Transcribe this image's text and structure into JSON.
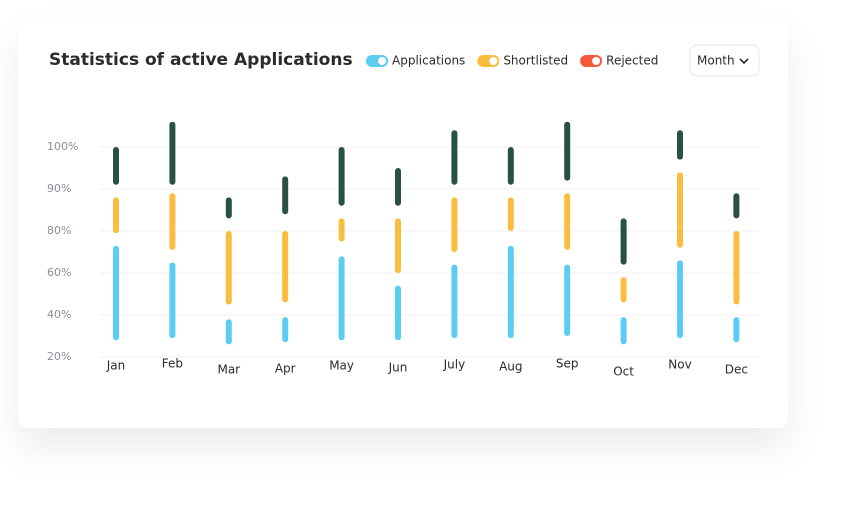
{
  "header": {
    "title": "Statistics of active Applications",
    "dropdown": "Month"
  },
  "chart_data": {
    "type": "range-bar",
    "categories": [
      "Jan",
      "Feb",
      "Mar",
      "Apr",
      "May",
      "Jun",
      "July",
      "Aug",
      "Sep",
      "Oct",
      "Nov",
      "Dec"
    ],
    "series": [
      {
        "name": "Applications",
        "color": "#5bcdf0",
        "legend_color": "#5bcdf0",
        "low": [
          28,
          29,
          26,
          27,
          28,
          28,
          29,
          29,
          30,
          26,
          29,
          27
        ],
        "high": [
          73,
          65,
          38,
          39,
          68,
          54,
          64,
          73,
          64,
          39,
          66,
          39
        ]
      },
      {
        "name": "Shortlisted",
        "color": "#fbbd3f",
        "legend_color": "#fbbd3f",
        "low": [
          79,
          71,
          45,
          46,
          75,
          60,
          70,
          80,
          71,
          46,
          72,
          45
        ],
        "high": [
          88,
          89,
          80,
          80,
          83,
          83,
          88,
          88,
          89,
          58,
          94,
          80
        ]
      },
      {
        "name": "Rejected",
        "color": "#285046",
        "legend_color": "#f45a3a",
        "low": [
          91,
          91,
          83,
          84,
          86,
          86,
          91,
          91,
          92,
          64,
          97,
          83
        ],
        "high": [
          100,
          106,
          88,
          93,
          100,
          95,
          104,
          100,
          106,
          83,
          104,
          89
        ]
      }
    ],
    "yticks": [
      {
        "value": 20,
        "label": "20%"
      },
      {
        "value": 40,
        "label": "40%"
      },
      {
        "value": 60,
        "label": "60%"
      },
      {
        "value": 80,
        "label": "80%"
      },
      {
        "value": 90,
        "label": "90%"
      },
      {
        "value": 100,
        "label": "100%"
      }
    ],
    "grid": true
  }
}
